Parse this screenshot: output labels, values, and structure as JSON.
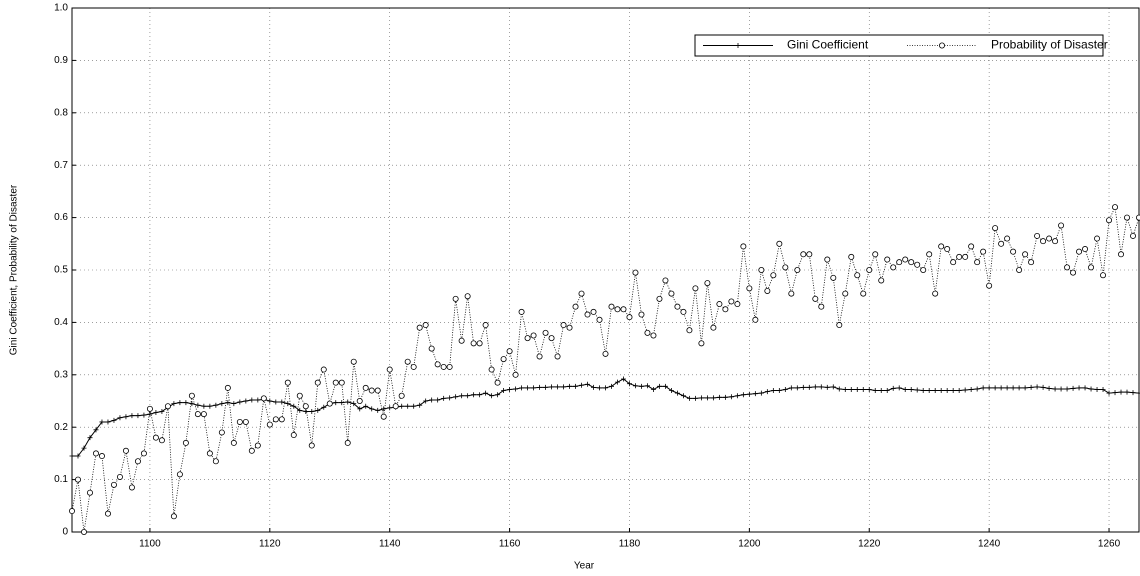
{
  "chart_data": {
    "type": "line",
    "x_label": "Year",
    "y_label": "Gini Coefficient, Probability of Disaster",
    "x": [
      1087,
      1088,
      1089,
      1090,
      1091,
      1092,
      1093,
      1094,
      1095,
      1096,
      1097,
      1098,
      1099,
      1100,
      1101,
      1102,
      1103,
      1104,
      1105,
      1106,
      1107,
      1108,
      1109,
      1110,
      1111,
      1112,
      1113,
      1114,
      1115,
      1116,
      1117,
      1118,
      1119,
      1120,
      1121,
      1122,
      1123,
      1124,
      1125,
      1126,
      1127,
      1128,
      1129,
      1130,
      1131,
      1132,
      1133,
      1134,
      1135,
      1136,
      1137,
      1138,
      1139,
      1140,
      1141,
      1142,
      1143,
      1144,
      1145,
      1146,
      1147,
      1148,
      1149,
      1150,
      1151,
      1152,
      1153,
      1154,
      1155,
      1156,
      1157,
      1158,
      1159,
      1160,
      1161,
      1162,
      1163,
      1164,
      1165,
      1166,
      1167,
      1168,
      1169,
      1170,
      1171,
      1172,
      1173,
      1174,
      1175,
      1176,
      1177,
      1178,
      1179,
      1180,
      1181,
      1182,
      1183,
      1184,
      1185,
      1186,
      1187,
      1188,
      1189,
      1190,
      1191,
      1192,
      1193,
      1194,
      1195,
      1196,
      1197,
      1198,
      1199,
      1200,
      1201,
      1202,
      1203,
      1204,
      1205,
      1206,
      1207,
      1208,
      1209,
      1210,
      1211,
      1212,
      1213,
      1214,
      1215,
      1216,
      1217,
      1218,
      1219,
      1220,
      1221,
      1222,
      1223,
      1224,
      1225,
      1226,
      1227,
      1228,
      1229,
      1230,
      1231,
      1232,
      1233,
      1234,
      1235,
      1236,
      1237,
      1238,
      1239,
      1240,
      1241,
      1242,
      1243,
      1244,
      1245,
      1246,
      1247,
      1248,
      1249,
      1250,
      1251,
      1252,
      1253,
      1254,
      1255,
      1256,
      1257,
      1258,
      1259,
      1260,
      1261,
      1262,
      1263,
      1264,
      1265
    ],
    "series": [
      {
        "name": "Gini Coefficient",
        "color": "#000000",
        "marker": "plus",
        "line_style": "solid",
        "values": [
          0.145,
          0.145,
          0.16,
          0.18,
          0.195,
          0.21,
          0.21,
          0.213,
          0.218,
          0.22,
          0.222,
          0.222,
          0.223,
          0.225,
          0.228,
          0.23,
          0.238,
          0.245,
          0.247,
          0.247,
          0.245,
          0.242,
          0.24,
          0.24,
          0.242,
          0.245,
          0.247,
          0.245,
          0.248,
          0.25,
          0.252,
          0.252,
          0.253,
          0.25,
          0.248,
          0.248,
          0.245,
          0.24,
          0.232,
          0.23,
          0.23,
          0.232,
          0.238,
          0.245,
          0.247,
          0.247,
          0.248,
          0.245,
          0.235,
          0.24,
          0.235,
          0.232,
          0.235,
          0.237,
          0.238,
          0.24,
          0.24,
          0.24,
          0.242,
          0.25,
          0.252,
          0.252,
          0.255,
          0.256,
          0.258,
          0.26,
          0.26,
          0.262,
          0.262,
          0.265,
          0.26,
          0.262,
          0.27,
          0.272,
          0.273,
          0.275,
          0.275,
          0.275,
          0.276,
          0.276,
          0.277,
          0.277,
          0.277,
          0.278,
          0.278,
          0.28,
          0.282,
          0.276,
          0.275,
          0.275,
          0.278,
          0.286,
          0.292,
          0.283,
          0.279,
          0.278,
          0.279,
          0.272,
          0.278,
          0.278,
          0.27,
          0.265,
          0.26,
          0.255,
          0.255,
          0.256,
          0.256,
          0.256,
          0.257,
          0.257,
          0.258,
          0.26,
          0.262,
          0.263,
          0.264,
          0.265,
          0.268,
          0.27,
          0.27,
          0.272,
          0.275,
          0.275,
          0.276,
          0.276,
          0.277,
          0.277,
          0.276,
          0.277,
          0.273,
          0.272,
          0.272,
          0.272,
          0.272,
          0.272,
          0.27,
          0.27,
          0.27,
          0.274,
          0.275,
          0.272,
          0.272,
          0.271,
          0.27,
          0.27,
          0.27,
          0.27,
          0.27,
          0.27,
          0.27,
          0.271,
          0.272,
          0.273,
          0.275,
          0.275,
          0.275,
          0.275,
          0.275,
          0.275,
          0.275,
          0.275,
          0.276,
          0.277,
          0.276,
          0.274,
          0.273,
          0.273,
          0.273,
          0.274,
          0.275,
          0.275,
          0.273,
          0.272,
          0.272,
          0.265,
          0.266,
          0.267,
          0.267,
          0.266,
          0.265
        ]
      },
      {
        "name": "Probability of Disaster",
        "color": "#000000",
        "marker": "circle",
        "line_style": "dotted",
        "values": [
          0.04,
          0.1,
          0.0,
          0.075,
          0.15,
          0.145,
          0.035,
          0.09,
          0.105,
          0.155,
          0.085,
          0.135,
          0.15,
          0.235,
          0.18,
          0.175,
          0.24,
          0.03,
          0.11,
          0.17,
          0.26,
          0.225,
          0.225,
          0.15,
          0.135,
          0.19,
          0.275,
          0.17,
          0.21,
          0.21,
          0.155,
          0.165,
          0.255,
          0.205,
          0.215,
          0.215,
          0.285,
          0.185,
          0.26,
          0.24,
          0.165,
          0.285,
          0.31,
          0.245,
          0.285,
          0.285,
          0.17,
          0.325,
          0.25,
          0.275,
          0.27,
          0.27,
          0.22,
          0.31,
          0.24,
          0.26,
          0.325,
          0.315,
          0.39,
          0.395,
          0.35,
          0.32,
          0.315,
          0.315,
          0.445,
          0.365,
          0.45,
          0.36,
          0.36,
          0.395,
          0.31,
          0.285,
          0.33,
          0.345,
          0.3,
          0.42,
          0.37,
          0.375,
          0.335,
          0.38,
          0.37,
          0.335,
          0.395,
          0.39,
          0.43,
          0.455,
          0.415,
          0.42,
          0.405,
          0.34,
          0.43,
          0.425,
          0.425,
          0.41,
          0.495,
          0.415,
          0.38,
          0.375,
          0.445,
          0.48,
          0.455,
          0.43,
          0.42,
          0.385,
          0.465,
          0.36,
          0.475,
          0.39,
          0.435,
          0.425,
          0.44,
          0.435,
          0.545,
          0.465,
          0.405,
          0.5,
          0.46,
          0.49,
          0.55,
          0.505,
          0.455,
          0.5,
          0.53,
          0.53,
          0.445,
          0.43,
          0.52,
          0.485,
          0.395,
          0.455,
          0.525,
          0.49,
          0.455,
          0.5,
          0.53,
          0.48,
          0.52,
          0.505,
          0.515,
          0.52,
          0.515,
          0.51,
          0.5,
          0.53,
          0.455,
          0.545,
          0.54,
          0.515,
          0.525,
          0.525,
          0.545,
          0.515,
          0.535,
          0.47,
          0.58,
          0.55,
          0.56,
          0.535,
          0.5,
          0.53,
          0.515,
          0.565,
          0.555,
          0.56,
          0.555,
          0.585,
          0.505,
          0.495,
          0.535,
          0.54,
          0.505,
          0.56,
          0.49,
          0.595,
          0.62,
          0.53,
          0.6,
          0.565,
          0.6
        ]
      }
    ],
    "xlim": [
      1087,
      1265
    ],
    "ylim": [
      0,
      1
    ],
    "xticks": [
      1100,
      1120,
      1140,
      1160,
      1180,
      1200,
      1220,
      1240,
      1260
    ],
    "yticks": [
      0,
      0.1,
      0.2,
      0.3,
      0.4,
      0.5,
      0.6,
      0.7,
      0.8,
      0.9,
      {
        "value": 1,
        "label": "1.0"
      }
    ],
    "grid": true,
    "legend": "top-right"
  }
}
